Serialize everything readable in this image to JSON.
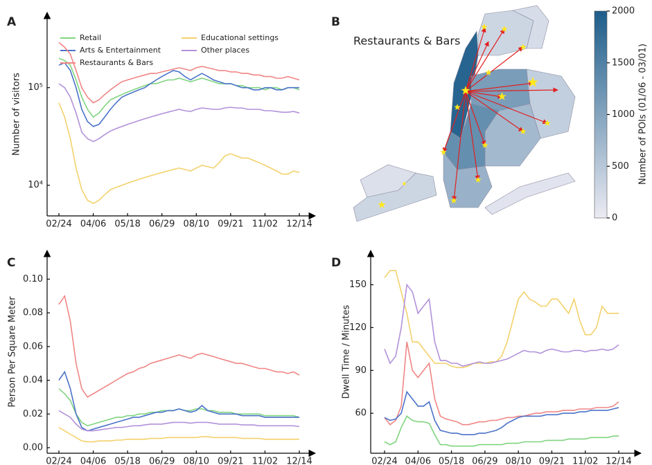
{
  "chart_data": [
    {
      "type": "line",
      "panel": "A",
      "ylabel": "Number of visitors",
      "log_scale": true,
      "legend": true,
      "ylim": [
        4850,
        590000
      ],
      "yticks": [
        {
          "value": 10000,
          "label": "10⁴"
        },
        {
          "value": 100000,
          "label": "10⁵"
        }
      ],
      "categories": [
        "02/24",
        null,
        null,
        null,
        null,
        null,
        "04/06",
        null,
        null,
        null,
        null,
        null,
        "05/18",
        null,
        null,
        null,
        null,
        null,
        "06/29",
        null,
        null,
        null,
        null,
        null,
        "08/10",
        null,
        null,
        null,
        null,
        null,
        "09/21",
        null,
        null,
        null,
        null,
        null,
        "11/02",
        null,
        null,
        null,
        null,
        null,
        "12/14"
      ],
      "series": [
        {
          "name": "Retail",
          "color": "#7fd47f",
          "values": [
            200000,
            190000,
            170000,
            120000,
            80000,
            60000,
            50000,
            55000,
            65000,
            75000,
            80000,
            85000,
            90000,
            95000,
            100000,
            105000,
            110000,
            110000,
            115000,
            120000,
            120000,
            125000,
            120000,
            115000,
            120000,
            125000,
            120000,
            115000,
            110000,
            110000,
            110000,
            105000,
            105000,
            100000,
            100000,
            100000,
            95000,
            100000,
            100000,
            95000,
            100000,
            100000,
            95000
          ]
        },
        {
          "name": "Arts & Entertainment",
          "color": "#4a72c8",
          "values": [
            170000,
            180000,
            150000,
            100000,
            60000,
            45000,
            40000,
            42000,
            50000,
            60000,
            70000,
            80000,
            85000,
            90000,
            95000,
            100000,
            110000,
            120000,
            130000,
            140000,
            150000,
            145000,
            130000,
            120000,
            130000,
            140000,
            130000,
            120000,
            115000,
            110000,
            110000,
            105000,
            100000,
            100000,
            95000,
            95000,
            100000,
            100000,
            95000,
            95000,
            100000,
            100000,
            100000
          ]
        },
        {
          "name": "Restaurants & Bars",
          "color": "#f08585",
          "values": [
            290000,
            260000,
            220000,
            150000,
            100000,
            80000,
            70000,
            75000,
            85000,
            95000,
            105000,
            115000,
            120000,
            125000,
            130000,
            135000,
            140000,
            140000,
            145000,
            150000,
            155000,
            160000,
            155000,
            150000,
            160000,
            165000,
            160000,
            155000,
            150000,
            150000,
            145000,
            145000,
            140000,
            140000,
            135000,
            135000,
            130000,
            130000,
            125000,
            125000,
            130000,
            125000,
            120000
          ]
        },
        {
          "name": "Educational settings",
          "color": "#f3d16b",
          "values": [
            70000,
            50000,
            30000,
            15000,
            9000,
            7000,
            6500,
            7000,
            8000,
            9000,
            9500,
            10000,
            10500,
            11000,
            11500,
            12000,
            12500,
            13000,
            13500,
            14000,
            14500,
            15000,
            14500,
            14000,
            15000,
            16000,
            15500,
            15000,
            17000,
            20000,
            21000,
            20000,
            19000,
            19000,
            18000,
            17000,
            16000,
            15000,
            14000,
            13000,
            13000,
            14000,
            13500
          ]
        },
        {
          "name": "Other places",
          "color": "#b291da",
          "values": [
            110000,
            100000,
            80000,
            55000,
            35000,
            30000,
            28000,
            30000,
            33000,
            36000,
            38000,
            40000,
            42000,
            44000,
            46000,
            48000,
            50000,
            52000,
            54000,
            56000,
            58000,
            60000,
            58000,
            57000,
            60000,
            62000,
            61000,
            60000,
            60000,
            62000,
            63000,
            62000,
            62000,
            60000,
            60000,
            60000,
            58000,
            58000,
            57000,
            56000,
            56000,
            57000,
            55000
          ]
        }
      ]
    },
    {
      "type": "choropleth",
      "panel": "B",
      "title": "Restaurants & Bars",
      "colorbar_label": "Number of POIs (01/06 - 03/01)",
      "clim": [
        0,
        2000
      ],
      "cticks": [
        0,
        500,
        1000,
        1500,
        2000
      ],
      "cmap": [
        "#ebebf3",
        "#1d5d8a"
      ],
      "values": [
        150,
        300,
        1900,
        300,
        200,
        1100,
        400,
        700,
        1300,
        800,
        100
      ]
    },
    {
      "type": "line",
      "panel": "C",
      "ylabel": "Person Per Square Meter",
      "log_scale": false,
      "legend": false,
      "ylim": [
        -0.0033,
        0.117
      ],
      "yticks": [
        {
          "value": 0,
          "label": "0.00"
        },
        0.02,
        0.04,
        0.06,
        0.08,
        {
          "value": 0.1,
          "label": "0.10"
        }
      ],
      "categories": [
        "02/24",
        null,
        null,
        null,
        null,
        null,
        "04/06",
        null,
        null,
        null,
        null,
        null,
        "05/18",
        null,
        null,
        null,
        null,
        null,
        "06/29",
        null,
        null,
        null,
        null,
        null,
        "08/10",
        null,
        null,
        null,
        null,
        null,
        "09/21",
        null,
        null,
        null,
        null,
        null,
        "11/02",
        null,
        null,
        null,
        null,
        null,
        "12/14"
      ],
      "series": [
        {
          "color": "#f08585",
          "values": [
            0.085,
            0.09,
            0.075,
            0.05,
            0.035,
            0.03,
            0.032,
            0.034,
            0.036,
            0.038,
            0.04,
            0.042,
            0.044,
            0.045,
            0.047,
            0.048,
            0.05,
            0.051,
            0.052,
            0.053,
            0.054,
            0.055,
            0.054,
            0.053,
            0.055,
            0.056,
            0.055,
            0.054,
            0.053,
            0.052,
            0.051,
            0.05,
            0.05,
            0.049,
            0.048,
            0.047,
            0.047,
            0.046,
            0.045,
            0.045,
            0.044,
            0.045,
            0.043
          ]
        },
        {
          "color": "#7fd47f",
          "values": [
            0.035,
            0.032,
            0.028,
            0.02,
            0.015,
            0.013,
            0.014,
            0.015,
            0.016,
            0.017,
            0.018,
            0.018,
            0.019,
            0.019,
            0.02,
            0.02,
            0.021,
            0.021,
            0.022,
            0.022,
            0.022,
            0.023,
            0.022,
            0.022,
            0.023,
            0.023,
            0.022,
            0.022,
            0.021,
            0.021,
            0.021,
            0.02,
            0.02,
            0.02,
            0.02,
            0.02,
            0.019,
            0.019,
            0.019,
            0.019,
            0.019,
            0.019,
            0.018
          ]
        },
        {
          "color": "#4a72c8",
          "values": [
            0.04,
            0.045,
            0.035,
            0.02,
            0.012,
            0.01,
            0.011,
            0.012,
            0.013,
            0.014,
            0.015,
            0.016,
            0.017,
            0.018,
            0.018,
            0.019,
            0.02,
            0.021,
            0.021,
            0.022,
            0.022,
            0.023,
            0.022,
            0.021,
            0.022,
            0.025,
            0.022,
            0.021,
            0.02,
            0.02,
            0.02,
            0.02,
            0.019,
            0.019,
            0.019,
            0.019,
            0.018,
            0.018,
            0.018,
            0.018,
            0.018,
            0.018,
            0.018
          ]
        },
        {
          "color": "#f3d16b",
          "values": [
            0.012,
            0.01,
            0.008,
            0.006,
            0.004,
            0.0035,
            0.0035,
            0.004,
            0.004,
            0.004,
            0.0045,
            0.0045,
            0.005,
            0.005,
            0.005,
            0.005,
            0.0055,
            0.0055,
            0.0055,
            0.006,
            0.006,
            0.006,
            0.006,
            0.006,
            0.006,
            0.0065,
            0.0065,
            0.006,
            0.006,
            0.006,
            0.006,
            0.006,
            0.0055,
            0.0055,
            0.0055,
            0.0055,
            0.005,
            0.005,
            0.005,
            0.005,
            0.005,
            0.005,
            0.005
          ]
        },
        {
          "color": "#b291da",
          "values": [
            0.022,
            0.02,
            0.018,
            0.014,
            0.011,
            0.01,
            0.01,
            0.0105,
            0.011,
            0.0115,
            0.012,
            0.012,
            0.0125,
            0.013,
            0.013,
            0.0135,
            0.014,
            0.014,
            0.014,
            0.0145,
            0.015,
            0.015,
            0.015,
            0.0145,
            0.015,
            0.015,
            0.015,
            0.0145,
            0.014,
            0.014,
            0.014,
            0.014,
            0.0135,
            0.0135,
            0.0135,
            0.013,
            0.013,
            0.013,
            0.013,
            0.013,
            0.013,
            0.013,
            0.0125
          ]
        }
      ]
    },
    {
      "type": "line",
      "panel": "D",
      "ylabel": "Dwell Time / Minutes",
      "log_scale": false,
      "legend": false,
      "ylim": [
        32,
        174
      ],
      "yticks": [
        60,
        90,
        120,
        150
      ],
      "categories": [
        "02/24",
        null,
        null,
        null,
        null,
        null,
        "04/06",
        null,
        null,
        null,
        null,
        null,
        "05/18",
        null,
        null,
        null,
        null,
        null,
        "06/29",
        null,
        null,
        null,
        null,
        null,
        "08/10",
        null,
        null,
        null,
        null,
        null,
        "09/21",
        null,
        null,
        null,
        null,
        null,
        "11/02",
        null,
        null,
        null,
        null,
        null,
        "12/14"
      ],
      "series": [
        {
          "color": "#f3d16b",
          "values": [
            155,
            160,
            160,
            145,
            130,
            110,
            110,
            105,
            100,
            95,
            95,
            95,
            93,
            92,
            92,
            93,
            95,
            95,
            95,
            96,
            96,
            100,
            110,
            125,
            140,
            145,
            140,
            138,
            135,
            135,
            140,
            140,
            135,
            130,
            140,
            125,
            115,
            115,
            120,
            135,
            130,
            130,
            130
          ]
        },
        {
          "color": "#b291da",
          "values": [
            105,
            95,
            100,
            120,
            150,
            145,
            130,
            135,
            140,
            110,
            97,
            97,
            95,
            95,
            93,
            94,
            95,
            96,
            95,
            95,
            96,
            97,
            98,
            100,
            102,
            104,
            103,
            103,
            102,
            104,
            105,
            104,
            103,
            103,
            104,
            104,
            103,
            104,
            104,
            105,
            104,
            105,
            108
          ]
        },
        {
          "color": "#f08585",
          "values": [
            57,
            52,
            55,
            65,
            110,
            90,
            85,
            90,
            95,
            70,
            58,
            56,
            55,
            54,
            52,
            52,
            53,
            54,
            54,
            55,
            55,
            56,
            57,
            57,
            58,
            58,
            59,
            60,
            60,
            61,
            61,
            61,
            62,
            62,
            62,
            63,
            63,
            63,
            64,
            64,
            64,
            65,
            68
          ]
        },
        {
          "color": "#4a72c8",
          "values": [
            57,
            55,
            56,
            60,
            75,
            70,
            65,
            65,
            68,
            55,
            48,
            47,
            46,
            46,
            45,
            45,
            45,
            46,
            46,
            47,
            48,
            50,
            53,
            55,
            57,
            58,
            58,
            58,
            58,
            59,
            59,
            59,
            60,
            60,
            60,
            61,
            61,
            62,
            62,
            62,
            62,
            63,
            64
          ]
        },
        {
          "color": "#7fd47f",
          "values": [
            40,
            38,
            40,
            50,
            58,
            55,
            54,
            54,
            53,
            45,
            38,
            38,
            37,
            37,
            37,
            37,
            37,
            38,
            38,
            38,
            38,
            38,
            39,
            39,
            39,
            40,
            40,
            40,
            40,
            41,
            41,
            41,
            41,
            42,
            42,
            42,
            42,
            43,
            43,
            43,
            43,
            44,
            44
          ]
        }
      ]
    }
  ]
}
